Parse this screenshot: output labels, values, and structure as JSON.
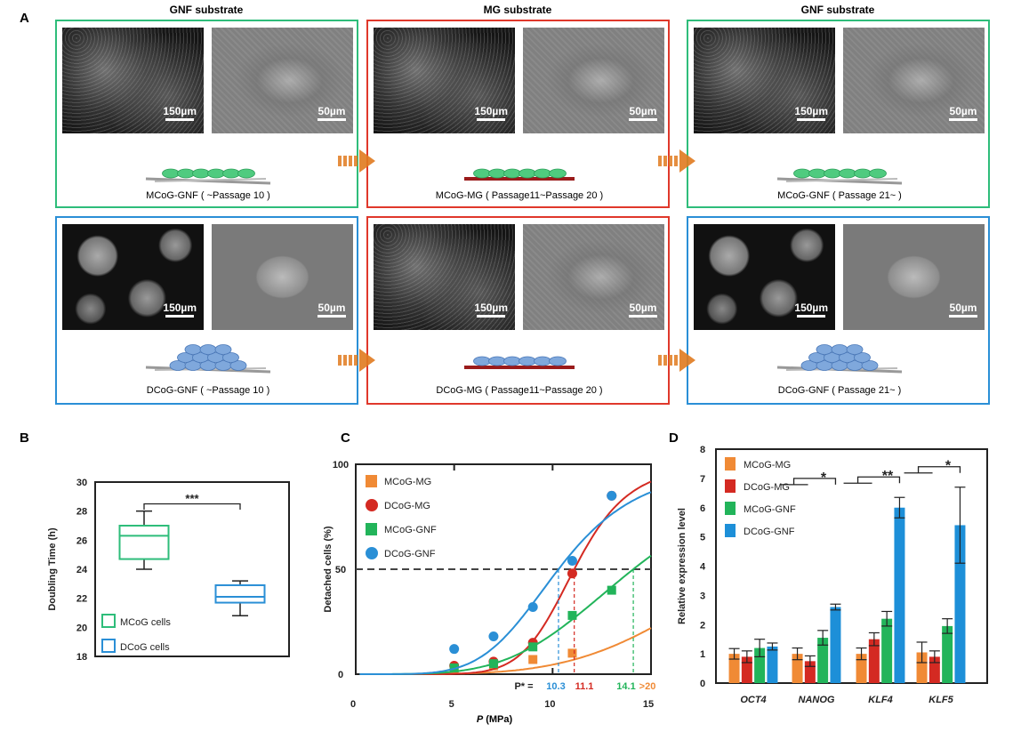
{
  "panel_a": {
    "label": "A",
    "columns": [
      {
        "title": "GNF substrate",
        "color": "#2ebd7a"
      },
      {
        "title": "MG substrate",
        "color": "#e0382b"
      },
      {
        "title": "GNF substrate",
        "color": "#2ebd7a"
      }
    ],
    "rows": [
      {
        "color_gnf": "#2ebd7a",
        "cells": [
          {
            "caption": "MCoG-GNF ( ~Passage 10 )",
            "scale1": "150µm",
            "scale2": "50µm"
          },
          {
            "caption": "MCoG-MG ( Passage11~Passage 20 )",
            "scale1": "150µm",
            "scale2": "50µm"
          },
          {
            "caption": "MCoG-GNF ( Passage 21~ )",
            "scale1": "150µm",
            "scale2": "50µm"
          }
        ]
      },
      {
        "color_gnf": "#2a8fd6",
        "cells": [
          {
            "caption": "DCoG-GNF ( ~Passage 10 )",
            "scale1": "150µm",
            "scale2": "50µm"
          },
          {
            "caption": "DCoG-MG ( Passage11~Passage 20 )",
            "scale1": "150µm",
            "scale2": "50µm"
          },
          {
            "caption": "DCoG-GNF ( Passage 21~ )",
            "scale1": "150µm",
            "scale2": "50µm"
          }
        ]
      }
    ],
    "arrow_color": "#e07a1f"
  },
  "chart_data": [
    {
      "panel": "B",
      "type": "box",
      "ylabel": "Doubling Time (h)",
      "ylim": [
        18,
        30
      ],
      "yticks": [
        "18",
        "20",
        "22",
        "24",
        "26",
        "28",
        "30"
      ],
      "significance": "***",
      "series": [
        {
          "name": "MCoG cells",
          "color": "#2ebd7a",
          "min": 24,
          "q1": 24.7,
          "median": 26.3,
          "q3": 27,
          "max": 28
        },
        {
          "name": "DCoG cells",
          "color": "#2a8fd6",
          "min": 20.8,
          "q1": 21.7,
          "median": 22.1,
          "q3": 22.9,
          "max": 23.2
        }
      ],
      "legend": "bottom-left"
    },
    {
      "panel": "C",
      "type": "scatter",
      "xlabel_italic": "P",
      "xlabel": " (MPa)",
      "ylabel": "Detached cells (%)",
      "xlim": [
        0,
        15
      ],
      "ylim": [
        0,
        100
      ],
      "xticks": [
        "0",
        "5",
        "10",
        "15"
      ],
      "yticks": [
        "0",
        "50",
        "100"
      ],
      "threshold": 50,
      "pstar_label": "P* =",
      "series": [
        {
          "name": "MCoG-MG",
          "color": "#f08a35",
          "marker": "square",
          "x": [
            5,
            7,
            9,
            11
          ],
          "y": [
            2,
            4,
            7,
            10
          ],
          "pstar": ">20"
        },
        {
          "name": "DCoG-MG",
          "color": "#d42a22",
          "marker": "circle",
          "x": [
            5,
            7,
            9,
            11,
            13
          ],
          "y": [
            4,
            6,
            15,
            48,
            85
          ],
          "pstar": "11.1"
        },
        {
          "name": "MCoG-GNF",
          "color": "#22b45a",
          "marker": "square",
          "x": [
            5,
            7,
            9,
            11,
            13
          ],
          "y": [
            3,
            5,
            13,
            28,
            40
          ],
          "pstar": "14.1"
        },
        {
          "name": "DCoG-GNF",
          "color": "#2a8fd6",
          "marker": "circle",
          "x": [
            5,
            7,
            9,
            11,
            13
          ],
          "y": [
            12,
            18,
            32,
            54,
            85
          ],
          "pstar": "10.3"
        }
      ],
      "legend": "top-left"
    },
    {
      "panel": "D",
      "type": "bar",
      "ylabel": "Relative expression level",
      "ylim": [
        0,
        8
      ],
      "yticks": [
        "0",
        "1",
        "2",
        "3",
        "4",
        "5",
        "6",
        "7",
        "8"
      ],
      "categories": [
        "OCT4",
        "NANOG",
        "KLF4",
        "KLF5"
      ],
      "series": [
        {
          "name": "MCoG-MG",
          "color": "#f08a35",
          "values": [
            1.0,
            1.0,
            1.0,
            1.05
          ],
          "errors": [
            0.18,
            0.2,
            0.2,
            0.35
          ]
        },
        {
          "name": "DCoG-MG",
          "color": "#d42a22",
          "values": [
            0.9,
            0.75,
            1.5,
            0.9
          ],
          "errors": [
            0.2,
            0.18,
            0.22,
            0.2
          ]
        },
        {
          "name": "MCoG-GNF",
          "color": "#22b45a",
          "values": [
            1.2,
            1.55,
            2.2,
            1.95
          ],
          "errors": [
            0.3,
            0.25,
            0.25,
            0.25
          ]
        },
        {
          "name": "DCoG-GNF",
          "color": "#1d8fd8",
          "values": [
            1.25,
            2.6,
            6.0,
            5.4
          ],
          "errors": [
            0.12,
            0.1,
            0.35,
            1.3
          ]
        }
      ],
      "significance": [
        {
          "category": "NANOG",
          "mark": "*"
        },
        {
          "category": "KLF4",
          "mark": "**"
        },
        {
          "category": "KLF5",
          "mark": "*"
        }
      ],
      "legend": "top-left"
    }
  ],
  "labels": {
    "b": "B",
    "c": "C",
    "d": "D"
  }
}
